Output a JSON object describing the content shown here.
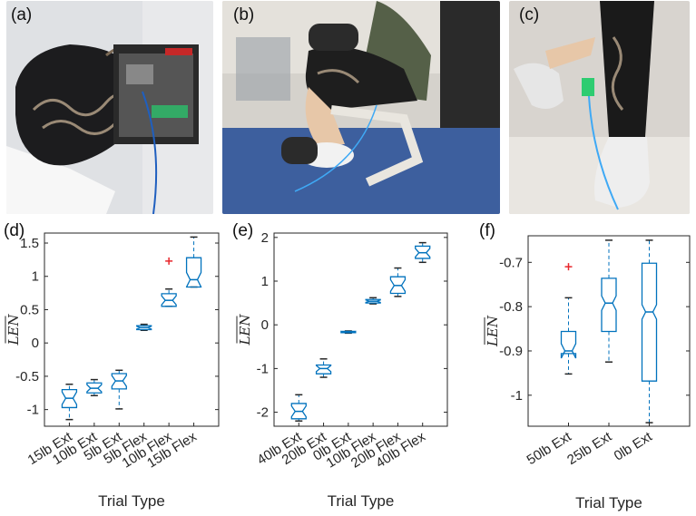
{
  "panels": [
    {
      "label": "(a)"
    },
    {
      "label": "(b)"
    },
    {
      "label": "(c)"
    }
  ],
  "colors": {
    "box": "#0072BD",
    "median": "#0072BD",
    "outlier": "#E8262B",
    "axis": "#262626"
  },
  "chart_data": [
    {
      "label": "(d)",
      "type": "box",
      "xlabel": "Trial Type",
      "ylabel": "LEN",
      "ylim": [
        -1.25,
        1.65
      ],
      "yticks": [
        "-1",
        "-0.5",
        "0",
        "0.5",
        "1",
        "1.5"
      ],
      "categories": [
        "15lb Ext",
        "10lb Ext",
        "5lb Ext",
        "5lb Flex",
        "10lb Flex",
        "15lb Flex"
      ],
      "boxes": [
        {
          "min": -1.15,
          "q1": -0.97,
          "median": -0.83,
          "q3": -0.7,
          "max": -0.62,
          "outliers": []
        },
        {
          "min": -0.79,
          "q1": -0.75,
          "median": -0.68,
          "q3": -0.6,
          "max": -0.55,
          "outliers": []
        },
        {
          "min": -0.99,
          "q1": -0.69,
          "median": -0.57,
          "q3": -0.46,
          "max": -0.41,
          "outliers": []
        },
        {
          "min": 0.19,
          "q1": 0.2,
          "median": 0.23,
          "q3": 0.26,
          "max": 0.28,
          "outliers": []
        },
        {
          "min": 0.55,
          "q1": 0.55,
          "median": 0.64,
          "q3": 0.74,
          "max": 0.81,
          "outliers": [
            1.23
          ]
        },
        {
          "min": 0.84,
          "q1": 0.84,
          "median": 0.95,
          "q3": 1.28,
          "max": 1.59,
          "outliers": []
        }
      ]
    },
    {
      "label": "(e)",
      "type": "box",
      "xlabel": "Trial Type",
      "ylabel": "LEN",
      "ylim": [
        -2.32,
        2.1
      ],
      "yticks": [
        "-2",
        "-1",
        "0",
        "1",
        "2"
      ],
      "categories": [
        "40lb Ext",
        "20lb Ext",
        "0lb Ext",
        "10lb Flex",
        "20lb Flex",
        "40lb Flex"
      ],
      "boxes": [
        {
          "min": -2.2,
          "q1": -2.15,
          "median": -1.98,
          "q3": -1.8,
          "max": -1.6,
          "outliers": []
        },
        {
          "min": -1.2,
          "q1": -1.12,
          "median": -1.0,
          "q3": -0.92,
          "max": -0.78,
          "outliers": []
        },
        {
          "min": -0.19,
          "q1": -0.18,
          "median": -0.16,
          "q3": -0.15,
          "max": -0.14,
          "outliers": []
        },
        {
          "min": 0.48,
          "q1": 0.5,
          "median": 0.54,
          "q3": 0.58,
          "max": 0.62,
          "outliers": []
        },
        {
          "min": 0.65,
          "q1": 0.72,
          "median": 0.9,
          "q3": 1.1,
          "max": 1.3,
          "outliers": []
        },
        {
          "min": 1.43,
          "q1": 1.52,
          "median": 1.65,
          "q3": 1.8,
          "max": 1.88,
          "outliers": []
        }
      ]
    },
    {
      "label": "(f)",
      "type": "box",
      "xlabel": "Trial Type",
      "ylabel": "LEN",
      "ylim": [
        -1.07,
        -0.64
      ],
      "yticks": [
        "-1",
        "-0.9",
        "-0.8",
        "-0.7"
      ],
      "categories": [
        "50lb Ext",
        "25lb Ext",
        "0lb Ext"
      ],
      "boxes": [
        {
          "min": -0.952,
          "q1": -0.906,
          "median": -0.9,
          "q3": -0.856,
          "max": -0.78,
          "outliers": [
            -0.71
          ]
        },
        {
          "min": -0.925,
          "q1": -0.856,
          "median": -0.792,
          "q3": -0.736,
          "max": -0.65,
          "outliers": []
        },
        {
          "min": -1.062,
          "q1": -0.968,
          "median": -0.812,
          "q3": -0.702,
          "max": -0.65,
          "outliers": []
        }
      ]
    }
  ]
}
